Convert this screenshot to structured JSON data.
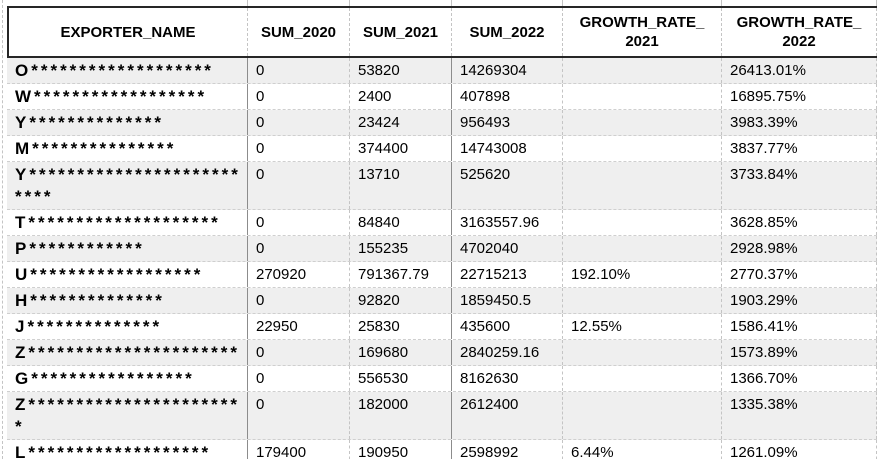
{
  "header": {
    "exporter": "EXPORTER_NAME",
    "sum2020": "SUM_2020",
    "sum2021": "SUM_2021",
    "sum2022": "SUM_2022",
    "gr2021_line1": "GROWTH_RATE_",
    "gr2021_line2": "2021",
    "gr2022_line1": "GROWTH_RATE_",
    "gr2022_line2": "2022"
  },
  "rows": [
    {
      "name": "O*******************",
      "sum2020": "0",
      "sum2021": "53820",
      "sum2022": "14269304",
      "gr2021": "",
      "gr2022": "26413.01%"
    },
    {
      "name": "W******************",
      "sum2020": "0",
      "sum2021": "2400",
      "sum2022": "407898",
      "gr2021": "",
      "gr2022": "16895.75%"
    },
    {
      "name": "Y**************",
      "sum2020": "0",
      "sum2021": "23424",
      "sum2022": "956493",
      "gr2021": "",
      "gr2022": "3983.39%"
    },
    {
      "name": "M***************",
      "sum2020": "0",
      "sum2021": "374400",
      "sum2022": "14743008",
      "gr2021": "",
      "gr2022": "3837.77%"
    },
    {
      "name": "Y**************************",
      "sum2020": "0",
      "sum2021": "13710",
      "sum2022": "525620",
      "gr2021": "",
      "gr2022": "3733.84%"
    },
    {
      "name": "T********************",
      "sum2020": "0",
      "sum2021": "84840",
      "sum2022": "3163557.96",
      "gr2021": "",
      "gr2022": "3628.85%"
    },
    {
      "name": "P************",
      "sum2020": "0",
      "sum2021": "155235",
      "sum2022": "4702040",
      "gr2021": "",
      "gr2022": "2928.98%"
    },
    {
      "name": "U******************",
      "sum2020": "270920",
      "sum2021": "791367.79",
      "sum2022": "22715213",
      "gr2021": "192.10%",
      "gr2022": "2770.37%"
    },
    {
      "name": "H**************",
      "sum2020": "0",
      "sum2021": "92820",
      "sum2022": "1859450.5",
      "gr2021": "",
      "gr2022": "1903.29%"
    },
    {
      "name": "J**************",
      "sum2020": "22950",
      "sum2021": "25830",
      "sum2022": "435600",
      "gr2021": "12.55%",
      "gr2022": "1586.41%"
    },
    {
      "name": "Z**********************",
      "sum2020": "0",
      "sum2021": "169680",
      "sum2022": "2840259.16",
      "gr2021": "",
      "gr2022": "1573.89%"
    },
    {
      "name": "G*****************",
      "sum2020": "0",
      "sum2021": "556530",
      "sum2022": "8162630",
      "gr2021": "",
      "gr2022": "1366.70%"
    },
    {
      "name": "Z***********************",
      "sum2020": "0",
      "sum2021": "182000",
      "sum2022": "2612400",
      "gr2021": "",
      "gr2022": "1335.38%"
    },
    {
      "name": "L*******************",
      "sum2020": "179400",
      "sum2021": "190950",
      "sum2022": "2598992",
      "gr2021": "6.44%",
      "gr2022": "1261.09%"
    }
  ],
  "colors": {
    "row_stripe": "#efefef",
    "row_white": "#ffffff",
    "dark_border": "#262626",
    "solid_divider": "#8c8c8c",
    "dashed_divider": "#c4c4c4",
    "text": "#000000"
  }
}
